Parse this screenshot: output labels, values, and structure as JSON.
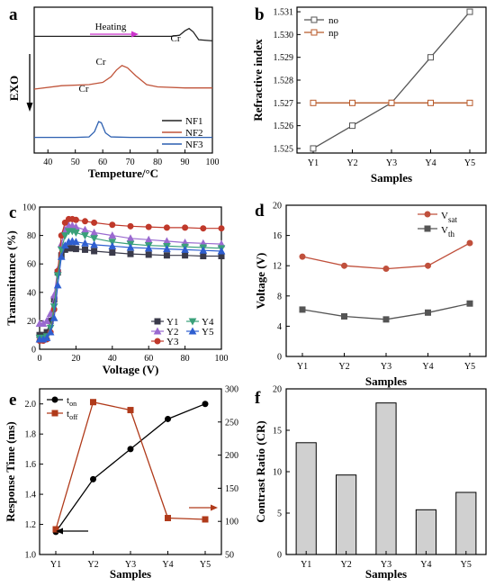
{
  "panels": [
    {
      "id": "a",
      "letter": "a",
      "chart_data": {
        "type": "line",
        "title": "",
        "xlabel": "Tempeture/°C",
        "ylabel": "EXO",
        "xlim": [
          35,
          100
        ],
        "xticks": [
          40,
          50,
          60,
          70,
          80,
          90,
          100
        ],
        "grid": false,
        "legend": "bottom-right",
        "annotations": [
          "Heating",
          "Cr",
          "Cr",
          "Cr"
        ],
        "series": [
          {
            "name": "NF1",
            "color": "#222222",
            "x": [
              35,
              50,
              70,
              85,
              88,
              90,
              91.5,
              93,
              95,
              100
            ],
            "y": [
              5.2,
              5.2,
              5.2,
              5.2,
              5.25,
              5.45,
              5.55,
              5.4,
              5.05,
              5.0
            ]
          },
          {
            "name": "NF2",
            "color": "#c0543a",
            "x": [
              35,
              45,
              55,
              60,
              63,
              65,
              67,
              69,
              72,
              76,
              80,
              90,
              100
            ],
            "y": [
              2.85,
              3.0,
              3.05,
              3.15,
              3.4,
              3.7,
              3.9,
              3.8,
              3.45,
              3.05,
              2.95,
              2.9,
              2.9
            ]
          },
          {
            "name": "NF3",
            "color": "#2c5fb0",
            "x": [
              35,
              50,
              55,
              57,
              58.5,
              59.5,
              61,
              63,
              70,
              100
            ],
            "y": [
              0.7,
              0.7,
              0.72,
              0.95,
              1.4,
              1.35,
              0.9,
              0.72,
              0.7,
              0.7
            ]
          }
        ]
      }
    },
    {
      "id": "b",
      "letter": "b",
      "chart_data": {
        "type": "line",
        "title": "",
        "xlabel": "Samples",
        "ylabel": "Refractive index",
        "categories": [
          "Y1",
          "Y2",
          "Y3",
          "Y4",
          "Y5"
        ],
        "ylim": [
          1.5248,
          1.5312
        ],
        "yticks": [
          1.525,
          1.526,
          1.527,
          1.528,
          1.529,
          1.53,
          1.531
        ],
        "grid": false,
        "legend": "top-left",
        "series": [
          {
            "name": "no",
            "color": "#555555",
            "marker": "square",
            "values": [
              1.525,
              1.526,
              1.527,
              1.529,
              1.531
            ]
          },
          {
            "name": "np",
            "color": "#b85a2a",
            "marker": "square",
            "values": [
              1.527,
              1.527,
              1.527,
              1.527,
              1.527
            ]
          }
        ]
      }
    },
    {
      "id": "c",
      "letter": "c",
      "chart_data": {
        "type": "line",
        "title": "",
        "xlabel": "Voltage (V)",
        "ylabel": "Transmittance (%)",
        "xlim": [
          0,
          100
        ],
        "ylim": [
          0,
          100
        ],
        "xticks": [
          0,
          20,
          40,
          60,
          80,
          100
        ],
        "yticks": [
          0,
          20,
          40,
          60,
          80,
          100
        ],
        "grid": false,
        "legend": "bottom-right",
        "series": [
          {
            "name": "Y1",
            "color": "#3a3a4a",
            "marker": "square",
            "x": [
              0,
              2,
              4,
              6,
              8,
              10,
              12,
              14,
              16,
              18,
              20,
              25,
              30,
              40,
              50,
              60,
              70,
              80,
              90,
              100
            ],
            "y": [
              10,
              10,
              12,
              20,
              35,
              54,
              66,
              70,
              71,
              71,
              70.5,
              70,
              69,
              68,
              67,
              66.5,
              66,
              66,
              65.5,
              65.5
            ]
          },
          {
            "name": "Y2",
            "color": "#9a6ad0",
            "marker": "triangle-up",
            "x": [
              0,
              2,
              4,
              6,
              8,
              10,
              12,
              14,
              16,
              18,
              20,
              25,
              30,
              40,
              50,
              60,
              70,
              80,
              90,
              100
            ],
            "y": [
              18,
              18,
              20,
              25,
              38,
              56,
              74,
              84,
              87,
              87,
              86,
              84,
              82,
              80,
              78,
              77,
              76,
              75,
              74.5,
              74
            ]
          },
          {
            "name": "Y3",
            "color": "#c0392b",
            "marker": "circle",
            "x": [
              0,
              2,
              4,
              6,
              8,
              10,
              12,
              14,
              16,
              18,
              20,
              25,
              30,
              40,
              50,
              60,
              70,
              80,
              90,
              100
            ],
            "y": [
              6,
              6,
              7,
              12,
              28,
              55,
              80,
              89,
              91.5,
              91.5,
              91,
              90,
              89,
              87.5,
              86.5,
              86,
              85.5,
              85.5,
              85,
              85
            ]
          },
          {
            "name": "Y4",
            "color": "#3aa07a",
            "marker": "triangle-down",
            "x": [
              0,
              2,
              4,
              6,
              8,
              10,
              12,
              14,
              16,
              18,
              20,
              25,
              30,
              40,
              50,
              60,
              70,
              80,
              90,
              100
            ],
            "y": [
              8,
              8,
              9,
              15,
              30,
              52,
              70,
              80,
              83,
              83,
              82,
              80,
              78,
              75.5,
              74,
              73,
              72.5,
              72,
              71.5,
              71
            ]
          },
          {
            "name": "Y5",
            "color": "#2f5fd0",
            "marker": "triangle-up",
            "x": [
              0,
              2,
              4,
              6,
              8,
              10,
              12,
              14,
              16,
              18,
              20,
              25,
              30,
              40,
              50,
              60,
              70,
              80,
              90,
              100
            ],
            "y": [
              7,
              7,
              8,
              12,
              22,
              45,
              65,
              73,
              75.5,
              76,
              75.5,
              74.5,
              73.5,
              72.5,
              71.5,
              71,
              70.5,
              70,
              69.5,
              69
            ]
          }
        ]
      }
    },
    {
      "id": "d",
      "letter": "d",
      "chart_data": {
        "type": "line",
        "title": "",
        "xlabel": "Samples",
        "ylabel": "Voltage (V)",
        "categories": [
          "Y1",
          "Y2",
          "Y3",
          "Y4",
          "Y5"
        ],
        "ylim": [
          0,
          20
        ],
        "yticks": [
          0,
          4,
          8,
          12,
          16,
          20
        ],
        "grid": false,
        "legend": "top-right",
        "series": [
          {
            "name": "V",
            "sub": "sat",
            "color": "#c0503c",
            "marker": "circle",
            "values": [
              13.2,
              12.0,
              11.6,
              12.0,
              15.0
            ]
          },
          {
            "name": "V",
            "sub": "th",
            "color": "#555555",
            "marker": "square",
            "values": [
              6.2,
              5.3,
              4.9,
              5.8,
              7.0
            ]
          }
        ]
      }
    },
    {
      "id": "e",
      "letter": "e",
      "chart_data": {
        "type": "line",
        "title": "",
        "xlabel": "Samples",
        "ylabel": "Response Time (ms)",
        "categories": [
          "Y1",
          "Y2",
          "Y3",
          "Y4",
          "Y5"
        ],
        "ylim": [
          1.0,
          2.1
        ],
        "yticks": [
          1.0,
          1.2,
          1.4,
          1.6,
          1.8,
          2.0
        ],
        "y2lim": [
          50,
          300
        ],
        "y2ticks": [
          50,
          100,
          150,
          200,
          250,
          300
        ],
        "grid": false,
        "legend": "top-left",
        "series": [
          {
            "name": "t",
            "sub": "on",
            "color": "#000000",
            "marker": "circle",
            "axis": "left",
            "values": [
              1.15,
              1.5,
              1.7,
              1.9,
              2.0
            ]
          },
          {
            "name": "t",
            "sub": "off",
            "color": "#b03a1a",
            "marker": "square",
            "axis": "right",
            "values": [
              88,
              280,
              268,
              105,
              103
            ]
          }
        ]
      }
    },
    {
      "id": "f",
      "letter": "f",
      "chart_data": {
        "type": "bar",
        "title": "",
        "xlabel": "Samples",
        "ylabel": "Contrast Ratio (CR)",
        "categories": [
          "Y1",
          "Y2",
          "Y3",
          "Y4",
          "Y5"
        ],
        "values": [
          13.5,
          9.6,
          18.3,
          5.4,
          7.5
        ],
        "ylim": [
          0,
          20
        ],
        "yticks": [
          0,
          5,
          10,
          15,
          20
        ],
        "grid": false,
        "color": "#d0d0d0"
      }
    }
  ]
}
